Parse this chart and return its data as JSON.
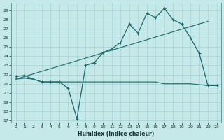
{
  "xlabel": "Humidex (Indice chaleur)",
  "background_color": "#c5e8e8",
  "grid_color": "#a8d4d4",
  "line_color": "#1a6b6b",
  "xlim": [
    -0.5,
    23.5
  ],
  "ylim": [
    16.8,
    29.8
  ],
  "yticks": [
    17,
    18,
    19,
    20,
    21,
    22,
    23,
    24,
    25,
    26,
    27,
    28,
    29
  ],
  "xticks": [
    0,
    1,
    2,
    3,
    4,
    5,
    6,
    7,
    8,
    9,
    10,
    11,
    12,
    13,
    14,
    15,
    16,
    17,
    18,
    19,
    20,
    21,
    22,
    23
  ],
  "curve1_x": [
    0,
    1,
    2,
    3,
    4,
    5,
    6,
    7,
    8,
    9,
    10,
    11,
    12,
    13,
    14,
    15,
    16,
    17,
    18,
    19,
    20,
    21,
    22,
    23
  ],
  "curve1_y": [
    21.8,
    21.9,
    21.5,
    21.2,
    21.2,
    21.2,
    20.5,
    17.2,
    23.0,
    23.3,
    24.4,
    24.8,
    25.5,
    27.5,
    26.5,
    28.7,
    28.2,
    29.2,
    28.0,
    27.5,
    26.0,
    24.3,
    20.8,
    20.8
  ],
  "curve2_x": [
    0,
    1,
    2,
    3,
    4,
    5,
    6,
    7,
    8,
    9,
    10,
    11,
    12,
    13,
    14,
    15,
    16,
    17,
    18,
    19,
    20,
    21,
    22,
    23
  ],
  "curve2_y": [
    21.5,
    21.6,
    21.5,
    21.2,
    21.2,
    21.2,
    21.2,
    21.2,
    21.2,
    21.2,
    21.2,
    21.2,
    21.2,
    21.2,
    21.2,
    21.2,
    21.2,
    21.0,
    21.0,
    21.0,
    21.0,
    20.9,
    20.8,
    20.8
  ],
  "trend_x": [
    0,
    22
  ],
  "trend_y": [
    21.5,
    27.8
  ]
}
